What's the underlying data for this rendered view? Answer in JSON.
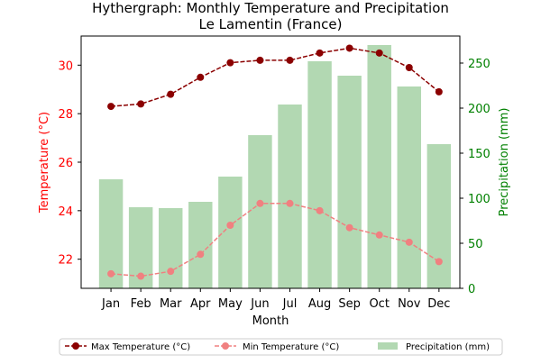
{
  "chart_data": {
    "type": "bar",
    "title": "Hythergraph: Monthly Temperature and Precipitation",
    "subtitle": "Le Lamentin (France)",
    "xlabel": "Month",
    "ylabel_left": "Temperature (°C)",
    "ylabel_right": "Precipitation (mm)",
    "categories": [
      "Jan",
      "Feb",
      "Mar",
      "Apr",
      "May",
      "Jun",
      "Jul",
      "Aug",
      "Sep",
      "Oct",
      "Nov",
      "Dec"
    ],
    "temp_ylim": [
      20.8,
      31.2
    ],
    "temp_ticks": [
      "22",
      "24",
      "26",
      "28",
      "30"
    ],
    "precip_ylim": [
      0,
      280
    ],
    "precip_ticks": [
      "0",
      "50",
      "100",
      "150",
      "200",
      "250"
    ],
    "grid": false,
    "legend_position": "bottom-center",
    "colors": {
      "max": "#8b0000",
      "min": "#f08080",
      "precip": "#b2d8b2",
      "left_axis": "#ff0000",
      "right_axis": "#008000"
    },
    "series": [
      {
        "name": "Max Temperature (°C)",
        "kind": "line",
        "axis": "left",
        "values": [
          28.3,
          28.4,
          28.8,
          29.5,
          30.1,
          30.2,
          30.2,
          30.5,
          30.7,
          30.5,
          29.9,
          28.9
        ]
      },
      {
        "name": "Min Temperature (°C)",
        "kind": "line",
        "axis": "left",
        "values": [
          21.4,
          21.3,
          21.5,
          22.2,
          23.4,
          24.3,
          24.3,
          24.0,
          23.3,
          23.0,
          22.7,
          21.9
        ]
      },
      {
        "name": "Precipitation (mm)",
        "kind": "bar",
        "axis": "right",
        "values": [
          121,
          90,
          89,
          96,
          124,
          170,
          204,
          252,
          236,
          270,
          224,
          160
        ]
      }
    ]
  }
}
